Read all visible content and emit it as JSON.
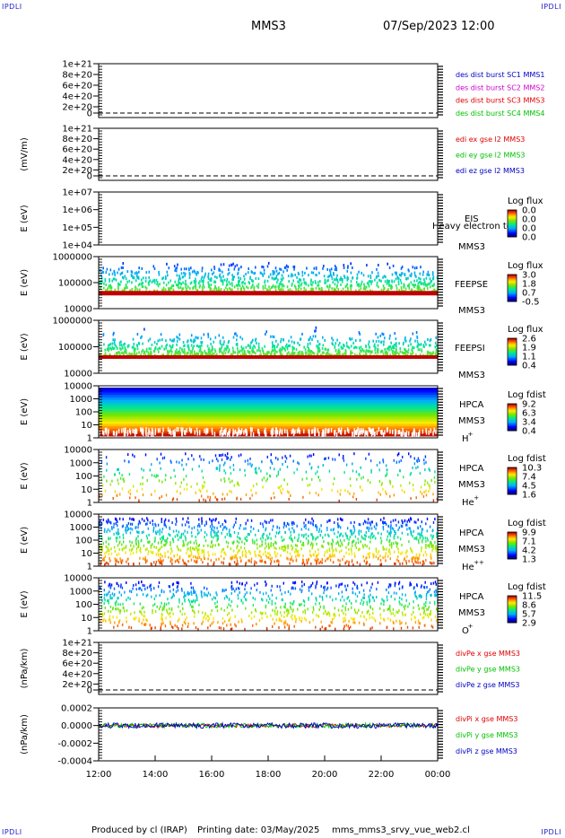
{
  "corners": {
    "tl": "IPDLI",
    "tr": "IPDLI",
    "bl": "IPDLI",
    "br": "IPDLI"
  },
  "header": {
    "spacecraft": "MMS3",
    "datetime": "07/Sep/2023 12:00"
  },
  "footer": {
    "produced_by": "Produced by cl (IRAP)",
    "printing_date": "Printing date: 03/May/2025",
    "script": "mms_mms3_srvy_vue_web2.cl"
  },
  "colors": {
    "red": "#e00000",
    "magenta": "#d000d0",
    "green": "#00c000",
    "blue": "#0000c0"
  },
  "chart_data": {
    "type": "mixed",
    "x_tick_labels": [
      "12:00",
      "14:00",
      "16:00",
      "18:00",
      "20:00",
      "22:00",
      "00:00"
    ],
    "xlim": [
      "12:00",
      "00:00"
    ],
    "panels": [
      {
        "id": "des-dist",
        "type": "line",
        "ylabel": "",
        "yticks": [
          "1e+21",
          "8e+20",
          "6e+20",
          "4e+20",
          "2e+20",
          "0"
        ],
        "legend": [
          {
            "text": "des dist burst SC1 MMS1",
            "color": "#0000c0"
          },
          {
            "text": "des dist burst SC2 MMS2",
            "color": "#d000d0"
          },
          {
            "text": "des dist burst SC3 MMS3",
            "color": "#e00000"
          },
          {
            "text": "des dist burst SC4 MMS4",
            "color": "#00c000"
          }
        ]
      },
      {
        "id": "edi",
        "type": "line",
        "ylabel": "(mV/m)",
        "yticks": [
          "1e+21",
          "8e+20",
          "6e+20",
          "4e+20",
          "2e+20",
          "0"
        ],
        "legend": [
          {
            "text": "edi ex gse l2 MMS3",
            "color": "#e00000"
          },
          {
            "text": "edi ey gse l2 MMS3",
            "color": "#00c000"
          },
          {
            "text": "edi ez gse l2 MMS3",
            "color": "#0000c0"
          }
        ]
      },
      {
        "id": "eis",
        "type": "heatmap",
        "ylabel": "E (eV)",
        "yticks": [
          "1e+07",
          "1e+06",
          "1e+05",
          "1e+04"
        ],
        "labels": [
          "EIS",
          "MMS3"
        ],
        "overlay_text": "Heavy electron to",
        "colorbar": {
          "title": "Log flux",
          "ticks": [
            "0.0",
            "0.0",
            "0.0",
            "0.0"
          ]
        }
      },
      {
        "id": "feepse",
        "type": "heatmap",
        "ylabel": "E (eV)",
        "yticks": [
          "1000000",
          "100000",
          "10000"
        ],
        "labels": [
          "FEEPSE",
          "MMS3"
        ],
        "colorbar": {
          "title": "Log flux",
          "ticks": [
            "3.0",
            "1.8",
            "0.7",
            "-0.5"
          ]
        }
      },
      {
        "id": "feepsi",
        "type": "heatmap",
        "ylabel": "E (eV)",
        "yticks": [
          "1000000",
          "100000",
          "10000"
        ],
        "labels": [
          "FEEPSI",
          "MMS3"
        ],
        "colorbar": {
          "title": "Log flux",
          "ticks": [
            "2.6",
            "1.9",
            "1.1",
            "0.4"
          ]
        }
      },
      {
        "id": "hpca-h",
        "type": "heatmap",
        "ylabel": "E (eV)",
        "yticks": [
          "10000",
          "1000",
          "100",
          "10",
          "1"
        ],
        "labels": [
          "HPCA",
          "MMS3",
          "H",
          "+"
        ],
        "colorbar": {
          "title": "Log fdist",
          "ticks": [
            "9.2",
            "6.3",
            "3.4",
            "0.4"
          ]
        }
      },
      {
        "id": "hpca-he",
        "type": "heatmap",
        "ylabel": "E (eV)",
        "yticks": [
          "10000",
          "1000",
          "100",
          "10",
          "1"
        ],
        "labels": [
          "HPCA",
          "MMS3",
          "He",
          "+"
        ],
        "colorbar": {
          "title": "Log fdist",
          "ticks": [
            "10.3",
            "7.4",
            "4.5",
            "1.6"
          ]
        }
      },
      {
        "id": "hpca-hepp",
        "type": "heatmap",
        "ylabel": "E (eV)",
        "yticks": [
          "10000",
          "1000",
          "100",
          "10",
          "1"
        ],
        "labels": [
          "HPCA",
          "MMS3",
          "He",
          "++"
        ],
        "colorbar": {
          "title": "Log fdist",
          "ticks": [
            "9.9",
            "7.1",
            "4.2",
            "1.3"
          ]
        }
      },
      {
        "id": "hpca-o",
        "type": "heatmap",
        "ylabel": "E (eV)",
        "yticks": [
          "10000",
          "1000",
          "100",
          "10",
          "1"
        ],
        "labels": [
          "HPCA",
          "MMS3",
          "O",
          "+"
        ],
        "colorbar": {
          "title": "Log fdist",
          "ticks": [
            "11.5",
            "8.6",
            "5.7",
            "2.9"
          ]
        }
      },
      {
        "id": "divpe",
        "type": "line",
        "ylabel": "(nPa/km)",
        "yticks": [
          "1e+21",
          "8e+20",
          "6e+20",
          "4e+20",
          "2e+20",
          "0"
        ],
        "legend": [
          {
            "text": "divPe x gse MMS3",
            "color": "#e00000"
          },
          {
            "text": "divPe y gse MMS3",
            "color": "#00c000"
          },
          {
            "text": "divPe z gse MMS3",
            "color": "#0000c0"
          }
        ]
      },
      {
        "id": "divpi",
        "type": "line",
        "ylabel": "(nPa/km)",
        "yticks": [
          "0.0002",
          "0.0000",
          "-0.0002",
          "-0.0004"
        ],
        "ylim": [
          -0.0004,
          0.0002
        ],
        "legend": [
          {
            "text": "divPi x gse MMS3",
            "color": "#e00000"
          },
          {
            "text": "divPi y gse MMS3",
            "color": "#00c000"
          },
          {
            "text": "divPi z gse MMS3",
            "color": "#0000c0"
          }
        ]
      }
    ]
  }
}
